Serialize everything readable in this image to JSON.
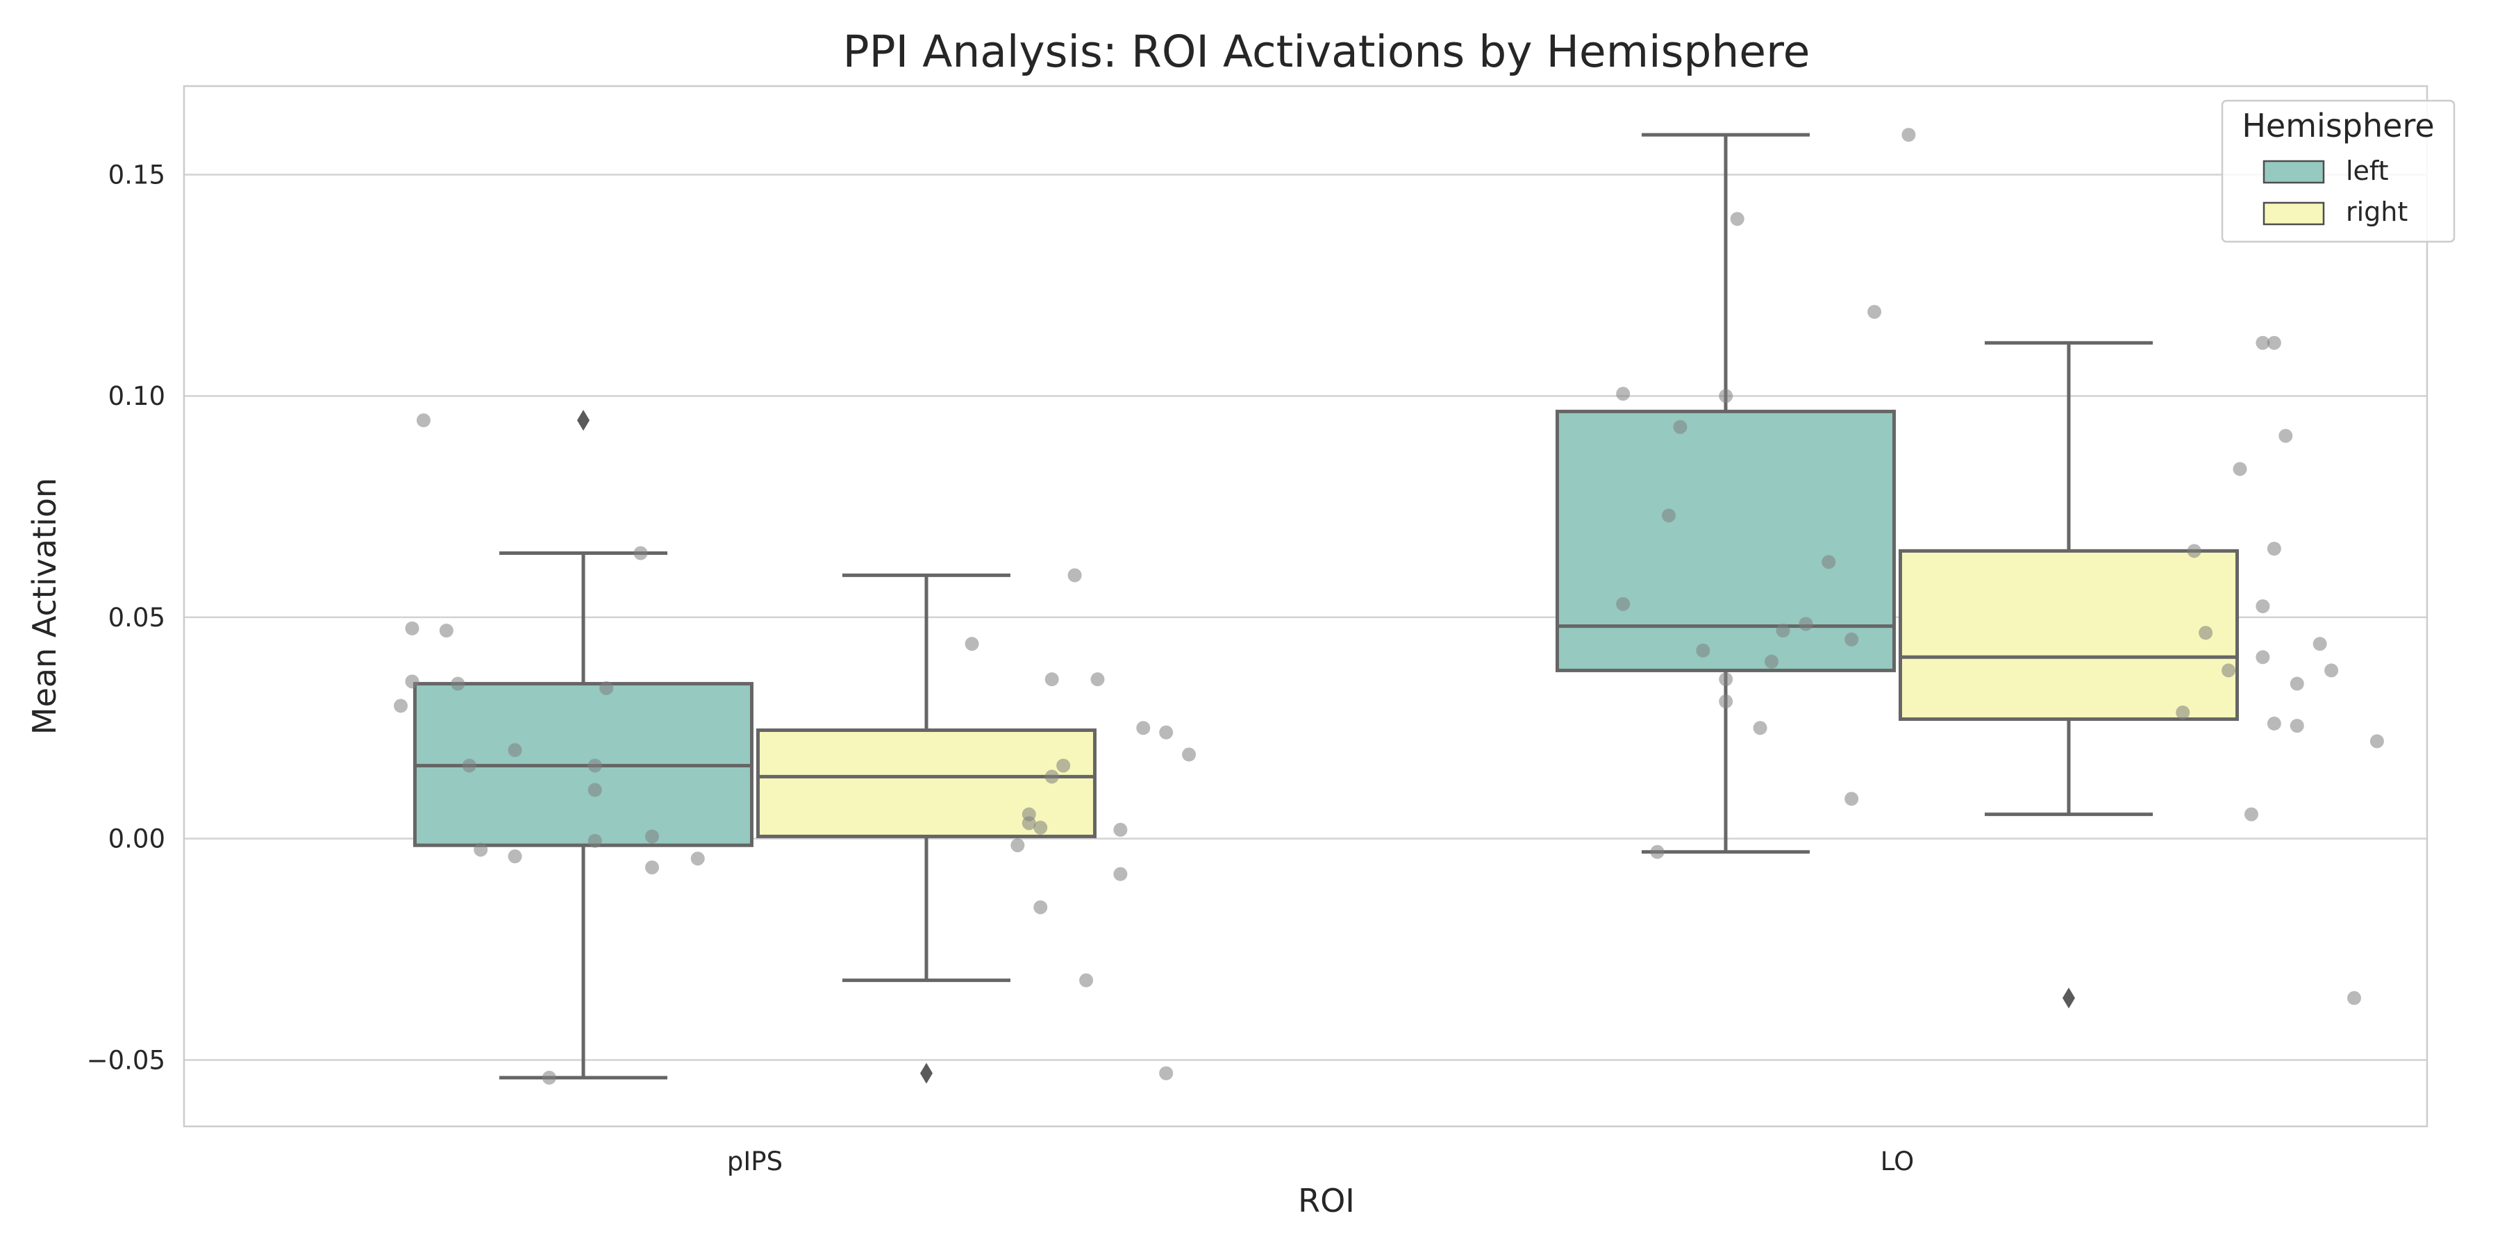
{
  "chart_data": {
    "type": "box",
    "title": "PPI Analysis: ROI Activations by Hemisphere",
    "xlabel": "ROI",
    "ylabel": "Mean Activation",
    "categories": [
      "pIPS",
      "LO"
    ],
    "ylim": [
      -0.065,
      0.17
    ],
    "yticks": [
      -0.05,
      0.0,
      0.05,
      0.1,
      0.15
    ],
    "ytick_labels": [
      "−0.05",
      "0.00",
      "0.05",
      "0.10",
      "0.15"
    ],
    "grid": "horizontal",
    "legend": {
      "title": "Hemisphere",
      "placement": "top-right",
      "entries": [
        "left",
        "right"
      ]
    },
    "series": [
      {
        "name": "left",
        "color": "#96c9c0",
        "boxes": [
          {
            "category": "pIPS",
            "whisker_low": -0.054,
            "q1": -0.0015,
            "median": 0.0165,
            "q3": 0.035,
            "whisker_high": 0.0645,
            "outliers": [
              0.0945
            ],
            "points": [
              {
                "dx": -0.29,
                "y": 0.0945
              },
              {
                "dx": -0.1,
                "y": 0.0645
              },
              {
                "dx": -0.3,
                "y": 0.0475
              },
              {
                "dx": -0.27,
                "y": 0.047
              },
              {
                "dx": -0.3,
                "y": 0.0355
              },
              {
                "dx": -0.26,
                "y": 0.035
              },
              {
                "dx": -0.13,
                "y": 0.034
              },
              {
                "dx": -0.31,
                "y": 0.03
              },
              {
                "dx": -0.21,
                "y": 0.02
              },
              {
                "dx": -0.25,
                "y": 0.0165
              },
              {
                "dx": -0.14,
                "y": 0.0165
              },
              {
                "dx": -0.14,
                "y": 0.011
              },
              {
                "dx": -0.09,
                "y": 0.0005
              },
              {
                "dx": -0.14,
                "y": -0.0005
              },
              {
                "dx": -0.24,
                "y": -0.0025
              },
              {
                "dx": -0.21,
                "y": -0.004
              },
              {
                "dx": -0.05,
                "y": -0.0045
              },
              {
                "dx": -0.09,
                "y": -0.0065
              },
              {
                "dx": -0.18,
                "y": -0.054
              }
            ]
          },
          {
            "category": "LO",
            "whisker_low": -0.003,
            "q1": 0.038,
            "median": 0.048,
            "q3": 0.0965,
            "whisker_high": 0.159,
            "outliers": [],
            "points": [
              {
                "dx": 0.01,
                "y": 0.159
              },
              {
                "dx": -0.14,
                "y": 0.14
              },
              {
                "dx": -0.02,
                "y": 0.119
              },
              {
                "dx": -0.24,
                "y": 0.1005
              },
              {
                "dx": -0.15,
                "y": 0.1
              },
              {
                "dx": -0.19,
                "y": 0.093
              },
              {
                "dx": -0.2,
                "y": 0.073
              },
              {
                "dx": -0.06,
                "y": 0.0625
              },
              {
                "dx": -0.24,
                "y": 0.053
              },
              {
                "dx": -0.08,
                "y": 0.0485
              },
              {
                "dx": -0.1,
                "y": 0.047
              },
              {
                "dx": -0.04,
                "y": 0.045
              },
              {
                "dx": -0.17,
                "y": 0.0425
              },
              {
                "dx": -0.11,
                "y": 0.04
              },
              {
                "dx": -0.15,
                "y": 0.036
              },
              {
                "dx": -0.15,
                "y": 0.031
              },
              {
                "dx": -0.12,
                "y": 0.025
              },
              {
                "dx": -0.04,
                "y": 0.009
              },
              {
                "dx": -0.21,
                "y": -0.003
              }
            ]
          }
        ]
      },
      {
        "name": "right",
        "color": "#f7f7bb",
        "boxes": [
          {
            "category": "pIPS",
            "whisker_low": -0.032,
            "q1": 0.0005,
            "median": 0.014,
            "q3": 0.0245,
            "whisker_high": 0.0595,
            "outliers": [
              -0.053
            ],
            "points": [
              {
                "dx": 0.28,
                "y": 0.0595
              },
              {
                "dx": 0.19,
                "y": 0.044
              },
              {
                "dx": 0.26,
                "y": 0.036
              },
              {
                "dx": 0.3,
                "y": 0.036
              },
              {
                "dx": 0.34,
                "y": 0.025
              },
              {
                "dx": 0.36,
                "y": 0.024
              },
              {
                "dx": 0.38,
                "y": 0.019
              },
              {
                "dx": 0.27,
                "y": 0.0165
              },
              {
                "dx": 0.26,
                "y": 0.014
              },
              {
                "dx": 0.24,
                "y": 0.0055
              },
              {
                "dx": 0.24,
                "y": 0.0035
              },
              {
                "dx": 0.25,
                "y": 0.0025
              },
              {
                "dx": 0.32,
                "y": 0.002
              },
              {
                "dx": 0.23,
                "y": -0.0015
              },
              {
                "dx": 0.32,
                "y": -0.008
              },
              {
                "dx": 0.25,
                "y": -0.0155
              },
              {
                "dx": 0.29,
                "y": -0.032
              },
              {
                "dx": 0.36,
                "y": -0.053
              }
            ]
          },
          {
            "category": "LO",
            "whisker_low": 0.0055,
            "q1": 0.027,
            "median": 0.041,
            "q3": 0.065,
            "whisker_high": 0.112,
            "outliers": [
              -0.036
            ],
            "points": [
              {
                "dx": 0.32,
                "y": 0.112
              },
              {
                "dx": 0.33,
                "y": 0.112
              },
              {
                "dx": 0.34,
                "y": 0.091
              },
              {
                "dx": 0.3,
                "y": 0.0835
              },
              {
                "dx": 0.26,
                "y": 0.065
              },
              {
                "dx": 0.33,
                "y": 0.0655
              },
              {
                "dx": 0.32,
                "y": 0.0525
              },
              {
                "dx": 0.27,
                "y": 0.0465
              },
              {
                "dx": 0.37,
                "y": 0.044
              },
              {
                "dx": 0.32,
                "y": 0.041
              },
              {
                "dx": 0.29,
                "y": 0.038
              },
              {
                "dx": 0.38,
                "y": 0.038
              },
              {
                "dx": 0.35,
                "y": 0.035
              },
              {
                "dx": 0.25,
                "y": 0.0285
              },
              {
                "dx": 0.33,
                "y": 0.026
              },
              {
                "dx": 0.35,
                "y": 0.0255
              },
              {
                "dx": 0.42,
                "y": 0.022
              },
              {
                "dx": 0.31,
                "y": 0.0055
              },
              {
                "dx": 0.4,
                "y": -0.036
              }
            ]
          }
        ]
      }
    ]
  }
}
